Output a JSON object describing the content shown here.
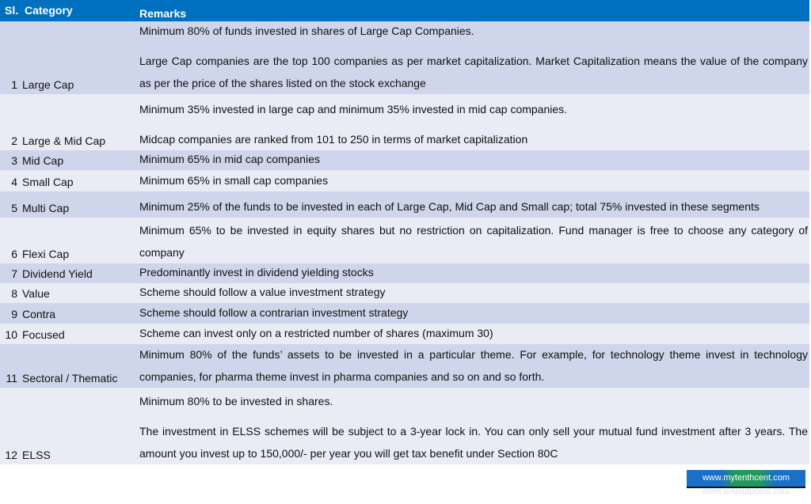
{
  "header": {
    "sl": "Sl.",
    "category": "Category",
    "remarks": "Remarks"
  },
  "rows": [
    {
      "sl": "1",
      "category": "Large Cap",
      "remarks": [
        "Minimum 80% of funds invested in shares of Large Cap Companies.",
        "Large Cap companies are the top 100 companies as per market capitalization. Market Capitalization means the value of the company as per the price of the shares listed on the stock exchange"
      ]
    },
    {
      "sl": "2",
      "category": "Large & Mid Cap",
      "remarks": [
        "Minimum 35% invested in large cap and minimum 35% invested in mid cap companies.",
        "Midcap companies are ranked from 101 to 250 in terms of market capitalization"
      ]
    },
    {
      "sl": "3",
      "category": "Mid Cap",
      "remarks": [
        "Minimum 65% in mid cap companies"
      ]
    },
    {
      "sl": "4",
      "category": "Small Cap",
      "remarks": [
        "Minimum 65% in small cap companies"
      ]
    },
    {
      "sl": "5",
      "category": "Multi Cap",
      "remarks": [
        "Minimum 25% of the funds to be invested in each of Large Cap, Mid Cap and Small cap; total 75% invested in these segments"
      ]
    },
    {
      "sl": "6",
      "category": "Flexi Cap",
      "remarks": [
        "Minimum 65% to be invested in equity shares but no restriction on capitalization. Fund manager is free to choose any category of company"
      ]
    },
    {
      "sl": "7",
      "category": "Dividend Yield",
      "remarks": [
        "Predominantly invest in dividend yielding stocks"
      ]
    },
    {
      "sl": "8",
      "category": "Value",
      "remarks": [
        "Scheme should follow a value investment strategy"
      ]
    },
    {
      "sl": "9",
      "category": "Contra",
      "remarks": [
        "Scheme should follow a contrarian investment strategy"
      ]
    },
    {
      "sl": "10",
      "category": "Focused",
      "remarks": [
        "Scheme can invest only on a restricted number of shares (maximum 30)"
      ]
    },
    {
      "sl": "11",
      "category": "Sectoral / Thematic",
      "remarks": [
        "Minimum 80% of the funds’ assets to be invested in a particular theme. For example, for technology theme invest in technology companies, for pharma theme invest in pharma companies and so on and so forth."
      ]
    },
    {
      "sl": "12",
      "category": "ELSS",
      "remarks": [
        "Minimum 80% to be invested in shares.",
        "The investment in ELSS schemes will be subject to a 3-year lock in. You can only sell your mutual fund investment after 3 years. The amount you invest up to 150,000/- per year you will get tax benefit under Section 80C"
      ]
    }
  ],
  "logo": "www.mytenthcent.com",
  "colors": {
    "header": "#0070c0",
    "row_dark": "#cfd5ea",
    "row_light": "#e9ebf5"
  }
}
